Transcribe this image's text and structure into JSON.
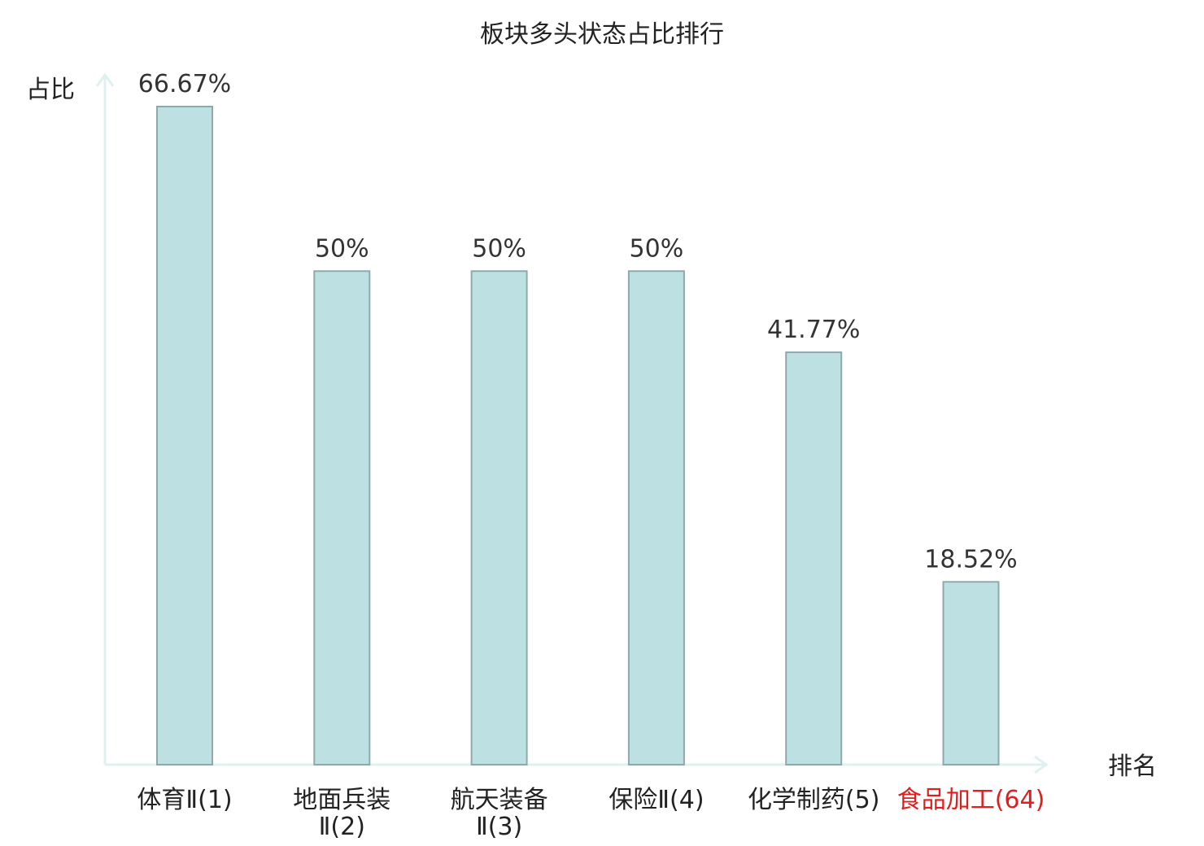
{
  "chart_data": {
    "type": "bar",
    "title": "板块多头状态占比排行",
    "ylabel": "占比",
    "xlabel": "排名",
    "ylim": [
      0,
      66.67
    ],
    "grid": false,
    "legend": "none",
    "categories": [
      {
        "name": "体育Ⅱ",
        "rank": "(1)",
        "lines": [
          "体育Ⅱ(1)"
        ],
        "highlight": false
      },
      {
        "name": "地面兵装Ⅱ",
        "rank": "(2)",
        "lines": [
          "地面兵装",
          "Ⅱ(2)"
        ],
        "highlight": false
      },
      {
        "name": "航天装备Ⅱ",
        "rank": "(3)",
        "lines": [
          "航天装备",
          "Ⅱ(3)"
        ],
        "highlight": false
      },
      {
        "name": "保险Ⅱ",
        "rank": "(4)",
        "lines": [
          "保险Ⅱ(4)"
        ],
        "highlight": false
      },
      {
        "name": "化学制药",
        "rank": "(5)",
        "lines": [
          "化学制药(5)"
        ],
        "highlight": false
      },
      {
        "name": "食品加工",
        "rank": "(64)",
        "lines": [
          "食品加工(64)"
        ],
        "highlight": true
      }
    ],
    "values": [
      66.67,
      50,
      50,
      50,
      41.77,
      18.52
    ],
    "value_labels": [
      "66.67%",
      "50%",
      "50%",
      "50%",
      "41.77%",
      "18.52%"
    ]
  },
  "colors": {
    "bar_fill": "#bde0e3",
    "bar_stroke": "#8fa9ab",
    "axis": "#dff1ef",
    "text": "#222222",
    "label": "#333333",
    "highlight": "#e21d1d"
  }
}
